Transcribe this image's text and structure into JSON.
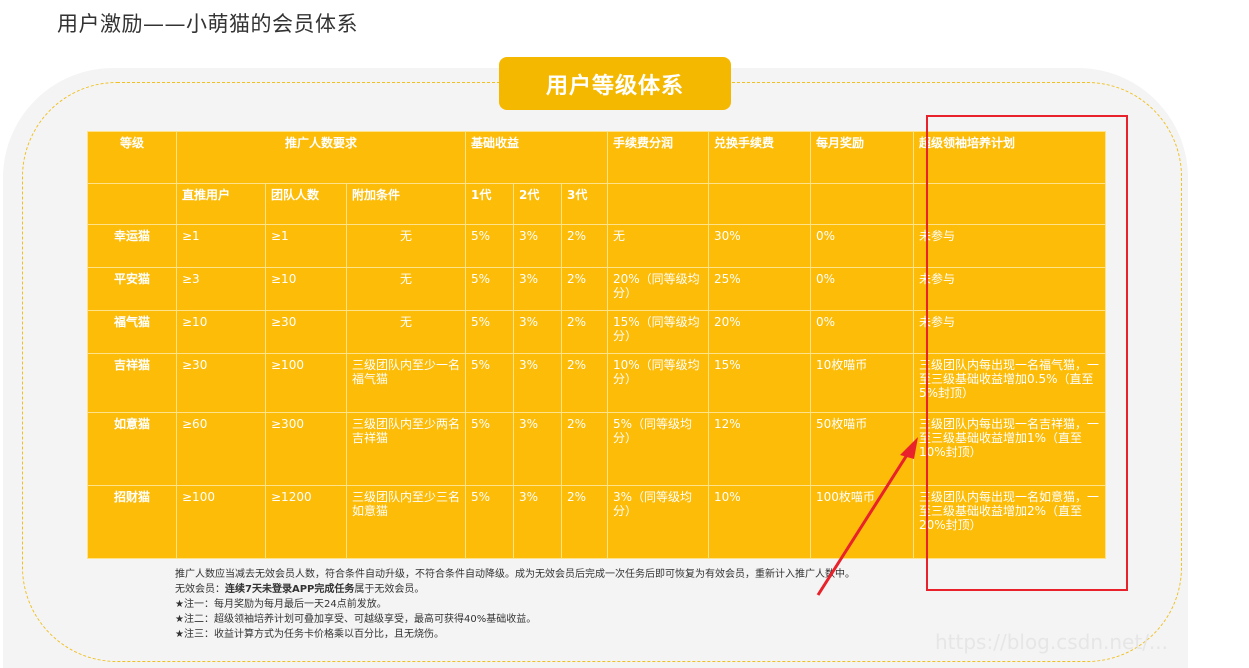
{
  "page": {
    "title": "用户激励——小萌猫的会员体系"
  },
  "badge": {
    "label": "用户等级体系"
  },
  "table": {
    "headers": {
      "level": "等级",
      "promo": "推广人数要求",
      "base": "基础收益",
      "fee_share": "手续费分润",
      "exchange": "兑换手续费",
      "monthly": "每月奖励",
      "super": "超级领袖培养计划"
    },
    "subheaders": {
      "direct": "直推用户",
      "team": "团队人数",
      "extra": "附加条件",
      "g1": "1代",
      "g2": "2代",
      "g3": "3代"
    },
    "rows": [
      {
        "level": "幸运猫",
        "direct": "≥1",
        "team": "≥1",
        "extra": "无",
        "g1": "5%",
        "g2": "3%",
        "g3": "2%",
        "fee_share": "无",
        "exchange": "30%",
        "monthly": "0%",
        "super": "未参与"
      },
      {
        "level": "平安猫",
        "direct": "≥3",
        "team": "≥10",
        "extra": "无",
        "g1": "5%",
        "g2": "3%",
        "g3": "2%",
        "fee_share": "20%（同等级均分）",
        "exchange": "25%",
        "monthly": "0%",
        "super": "未参与"
      },
      {
        "level": "福气猫",
        "direct": "≥10",
        "team": "≥30",
        "extra": "无",
        "g1": "5%",
        "g2": "3%",
        "g3": "2%",
        "fee_share": "15%（同等级均分）",
        "exchange": "20%",
        "monthly": "0%",
        "super": "未参与"
      },
      {
        "level": "吉祥猫",
        "direct": "≥30",
        "team": "≥100",
        "extra": "三级团队内至少一名福气猫",
        "g1": "5%",
        "g2": "3%",
        "g3": "2%",
        "fee_share": "10%（同等级均分）",
        "exchange": "15%",
        "monthly": "10枚喵币",
        "super": "三级团队内每出现一名福气猫，一至三级基础收益增加0.5%（直至5%封顶）"
      },
      {
        "level": "如意猫",
        "direct": "≥60",
        "team": "≥300",
        "extra": "三级团队内至少两名吉祥猫",
        "g1": "5%",
        "g2": "3%",
        "g3": "2%",
        "fee_share": "5%（同等级均分）",
        "exchange": "12%",
        "monthly": "50枚喵币",
        "super": "三级团队内每出现一名吉祥猫，一至三级基础收益增加1%（直至10%封顶）"
      },
      {
        "level": "招财猫",
        "direct": "≥100",
        "team": "≥1200",
        "extra": "三级团队内至少三名如意猫",
        "g1": "5%",
        "g2": "3%",
        "g3": "2%",
        "fee_share": "3%（同等级均分）",
        "exchange": "10%",
        "monthly": "100枚喵币",
        "super": "三级团队内每出现一名如意猫，一至三级基础收益增加2%（直至20%封顶）"
      }
    ]
  },
  "notes": {
    "line1": "推广人数应当减去无效会员人数，符合条件自动升级，不符合条件自动降级。成为无效会员后完成一次任务后即可恢复为有效会员，重新计入推广人数中。",
    "line2_prefix": "无效会员：",
    "line2_bold": "连续7天未登录APP完成任务",
    "line2_suffix": "属于无效会员。",
    "line3": "★注一：每月奖励为每月最后一天24点前发放。",
    "line4": "★注二：超级领袖培养计划可叠加享受、可越级享受，最高可获得40%基础收益。",
    "line5": "★注三：收益计算方式为任务卡价格乘以百分比，且无烧伤。"
  },
  "watermark": "https://blog.csdn.net/..."
}
